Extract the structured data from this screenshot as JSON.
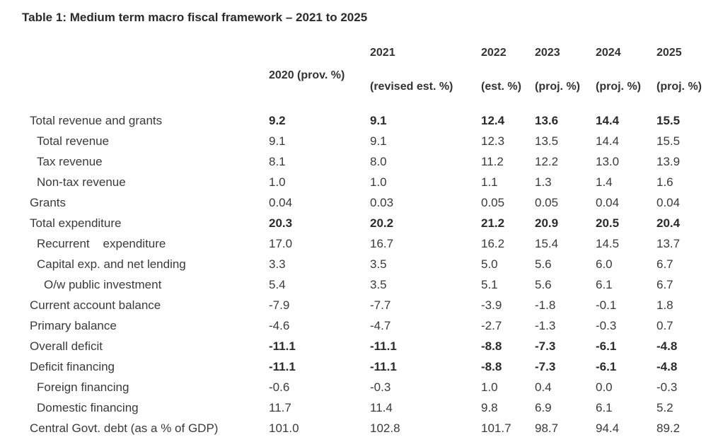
{
  "title": "Table 1: Medium term macro fiscal framework – 2021 to 2025",
  "headers": {
    "y2020": "2020 (prov. %)",
    "y2021_year": "2021",
    "y2021_note": "(revised est. %)",
    "y2022_year": "2022",
    "y2022_note": "(est. %)",
    "y2023_year": "2023",
    "y2023_note": "(proj. %)",
    "y2024_year": "2024",
    "y2024_note": "(proj. %)",
    "y2025_year": "2025",
    "y2025_note": "(proj. %)"
  },
  "rows": [
    {
      "label": "Total revenue and grants",
      "values": [
        "9.2",
        "9.1",
        "12.4",
        "13.6",
        "14.4",
        "15.5"
      ]
    },
    {
      "label": "Total revenue",
      "values": [
        "9.1",
        "9.1",
        "12.3",
        "13.5",
        "14.4",
        "15.5"
      ]
    },
    {
      "label": "Tax revenue",
      "values": [
        "8.1",
        "8.0",
        "11.2",
        "12.2",
        "13.0",
        "13.9"
      ]
    },
    {
      "label": "Non-tax revenue",
      "values": [
        "1.0",
        "1.0",
        "1.1",
        "1.3",
        "1.4",
        "1.6"
      ]
    },
    {
      "label": "Grants",
      "values": [
        "0.04",
        "0.03",
        "0.05",
        "0.05",
        "0.04",
        "0.04"
      ]
    },
    {
      "label": "Total expenditure",
      "values": [
        "20.3",
        "20.2",
        "21.2",
        "20.9",
        "20.5",
        "20.4"
      ]
    },
    {
      "label": "Recurrent    expenditure",
      "values": [
        "17.0",
        "16.7",
        "16.2",
        "15.4",
        "14.5",
        "13.7"
      ]
    },
    {
      "label": "Capital exp. and net lending",
      "values": [
        "3.3",
        "3.5",
        "5.0",
        "5.6",
        "6.0",
        "6.7"
      ]
    },
    {
      "label": "O/w public investment",
      "values": [
        "5.4",
        "3.5",
        "5.1",
        "5.6",
        "6.1",
        "6.7"
      ]
    },
    {
      "label": "Current account balance",
      "values": [
        "-7.9",
        "-7.7",
        "-3.9",
        "-1.8",
        "-0.1",
        "1.8"
      ]
    },
    {
      "label": "Primary balance",
      "values": [
        "-4.6",
        "-4.7",
        "-2.7",
        "-1.3",
        "-0.3",
        "0.7"
      ]
    },
    {
      "label": "Overall deficit",
      "values": [
        "-11.1",
        "-11.1",
        "-8.8",
        "-7.3",
        "-6.1",
        "-4.8"
      ]
    },
    {
      "label": "Deficit financing",
      "values": [
        "-11.1",
        "-11.1",
        "-8.8",
        "-7.3",
        "-6.1",
        "-4.8"
      ]
    },
    {
      "label": "Foreign financing",
      "values": [
        "-0.6",
        "-0.3",
        "1.0",
        "0.4",
        "0.0",
        "-0.3"
      ]
    },
    {
      "label": "Domestic financing",
      "values": [
        "11.7",
        "11.4",
        "9.8",
        "6.9",
        "6.1",
        "5.2"
      ]
    },
    {
      "label": "Central Govt. debt (as a % of GDP)",
      "values": [
        "101.0",
        "102.8",
        "101.7",
        "98.7",
        "94.4",
        "89.2"
      ]
    }
  ]
}
